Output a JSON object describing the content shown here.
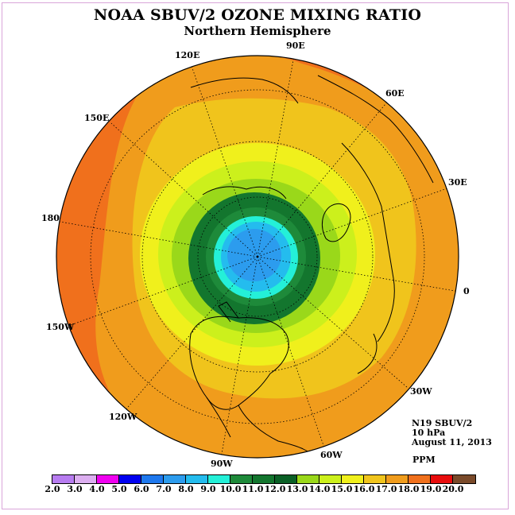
{
  "title": "NOAA SBUV/2 OZONE MIXING RATIO",
  "subtitle": "Northern Hemisphere",
  "longitude_labels": [
    "90E",
    "60E",
    "30E",
    "0",
    "30W",
    "60W",
    "90W",
    "120W",
    "150W",
    "180",
    "150E",
    "120E"
  ],
  "info": {
    "instrument": "N19 SBUV/2",
    "level": "10 hPa",
    "date": "August 11, 2013"
  },
  "units": "PPM",
  "colorbar": {
    "ticks": [
      "2.0",
      "3.0",
      "4.0",
      "5.0",
      "6.0",
      "7.0",
      "8.0",
      "9.0",
      "10.0",
      "11.0",
      "12.0",
      "13.0",
      "14.0",
      "15.0",
      "16.0",
      "17.0",
      "18.0",
      "19.0",
      "20.0"
    ],
    "colors": [
      "#b77cf0",
      "#dcaef0",
      "#f000f0",
      "#0000f0",
      "#1e78ee",
      "#2c9cee",
      "#24bcee",
      "#24f0d8",
      "#1e8a3a",
      "#13762e",
      "#0a6026",
      "#9ad81a",
      "#ccf01c",
      "#f0f01c",
      "#f0c41c",
      "#f09c1c",
      "#f0701c",
      "#e80c0c",
      "#7a4a2a"
    ]
  }
}
